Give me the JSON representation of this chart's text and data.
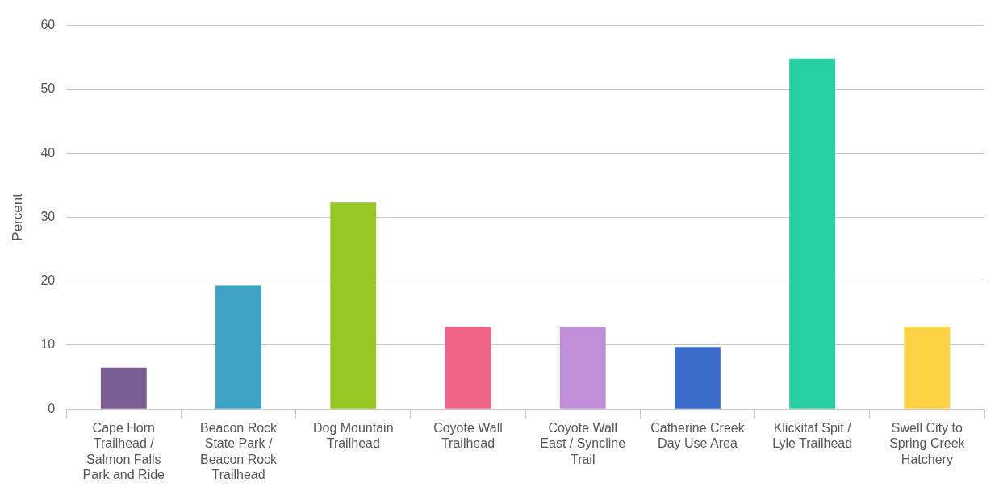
{
  "chart_data": {
    "type": "bar",
    "ylabel": "Percent",
    "categories": [
      "Cape Horn Trailhead / Salmon Falls Park and Ride",
      "Beacon Rock State Park / Beacon Rock Trailhead",
      "Dog Mountain Trailhead",
      "Coyote Wall Trailhead",
      "Coyote Wall East / Syncline Trail",
      "Catherine Creek Day Use Area",
      "Klickitat Spit / Lyle Trailhead",
      "Swell City to Spring Creek Hatchery"
    ],
    "values": [
      6.5,
      19.4,
      32.3,
      12.9,
      12.9,
      9.7,
      54.8,
      12.9
    ],
    "colors": [
      "#7b5e94",
      "#3ea2c4",
      "#95c823",
      "#f06585",
      "#be8fd8",
      "#3b6ccb",
      "#28cfa2",
      "#fbd345"
    ],
    "ylim": [
      0,
      60
    ],
    "yticks": [
      0,
      10,
      20,
      30,
      40,
      50,
      60
    ],
    "grid": "y",
    "legend": false
  }
}
